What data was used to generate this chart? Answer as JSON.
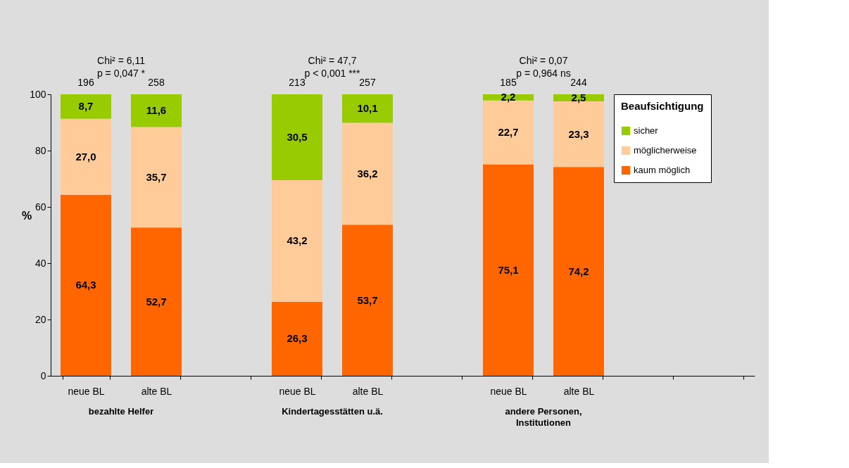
{
  "chart_data": {
    "type": "bar",
    "stacked": true,
    "categories": [
      "neue BL",
      "alte BL",
      null,
      "neue BL",
      "alte BL",
      null,
      "neue BL",
      "alte BL",
      null,
      null
    ],
    "ylabel": "%",
    "legend_title": "Beaufsichtigung",
    "legend": "right",
    "ylim": [
      0,
      100
    ],
    "yticks": [
      0,
      20,
      40,
      60,
      80,
      100
    ],
    "series": [
      {
        "name": "kaum möglich",
        "color": "#ff6600",
        "values": [
          64.3,
          52.7,
          null,
          26.3,
          53.7,
          null,
          75.1,
          74.2,
          null,
          null
        ],
        "value_labels": [
          "64,3",
          "52,7",
          null,
          "26,3",
          "53,7",
          null,
          "75,1",
          "74,2",
          null,
          null
        ]
      },
      {
        "name": "möglicherweise",
        "color": "#ffcc99",
        "values": [
          27.0,
          35.7,
          null,
          43.2,
          36.2,
          null,
          22.7,
          23.3,
          null,
          null
        ],
        "value_labels": [
          "27,0",
          "35,7",
          null,
          "43,2",
          "36,2",
          null,
          "22,7",
          "23,3",
          null,
          null
        ]
      },
      {
        "name": "sicher",
        "color": "#99cc00",
        "values": [
          8.7,
          11.6,
          null,
          30.5,
          10.1,
          null,
          2.2,
          2.5,
          null,
          null
        ],
        "value_labels": [
          "8,7",
          "11,6",
          null,
          "30,5",
          "10,1",
          null,
          "2,2",
          "2,5",
          null,
          null
        ]
      }
    ],
    "annotations": [
      "Chi² = 6,11\np = 0,047 *",
      "Chi² = 47,7\np < 0,001 ***",
      "Chi² = 0,07\np = 0,964  ns",
      "bezahlte Helfer",
      "Kindertagesstätten u.ä.",
      "andere Personen,\nInstitutionen",
      "196",
      "258",
      "213",
      "257",
      "185",
      "244"
    ]
  }
}
